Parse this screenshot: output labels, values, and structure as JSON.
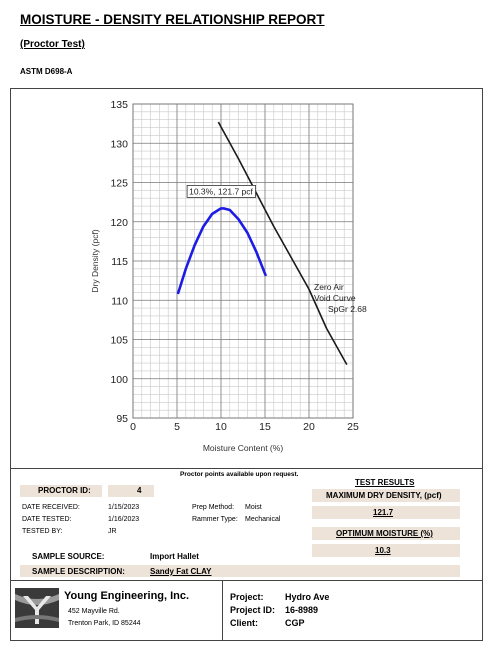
{
  "header": {
    "title": "MOISTURE - DENSITY RELATIONSHIP REPORT",
    "subtitle": "(Proctor Test)",
    "standard": "ASTM D698-A"
  },
  "chart_data": {
    "type": "line",
    "x_label": "Moisture Content (%)",
    "y_label": "Dry Density (pcf)",
    "xlim": [
      0,
      25
    ],
    "xticks": [
      0,
      5,
      10,
      15,
      20,
      25
    ],
    "ylim": [
      95,
      135
    ],
    "yticks": [
      95,
      100,
      105,
      110,
      115,
      120,
      125,
      130,
      135
    ],
    "grid": true,
    "series": [
      {
        "color": "#1c1ce6",
        "x": [
          5.1,
          6,
          7,
          8,
          9,
          10,
          10.3,
          11,
          12,
          13,
          14,
          15.1
        ],
        "values": [
          110.8,
          114.0,
          117.0,
          119.4,
          121.0,
          121.7,
          121.7,
          121.5,
          120.3,
          118.6,
          116.2,
          113.1
        ]
      },
      {
        "color": "#1a1a1a",
        "x": [
          9.7,
          12,
          14,
          16,
          18,
          20,
          22,
          24.3
        ],
        "values": [
          132.7,
          128.0,
          123.7,
          119.4,
          115.4,
          111.4,
          106.4,
          101.8
        ]
      }
    ],
    "annotations": [
      "10.3%, 121.7 pcf",
      "Zero Air",
      "Void Curve",
      "SpGr 2.68"
    ]
  },
  "note": "Proctor points available upon request.",
  "details": {
    "proctor_id_label": "PROCTOR ID:",
    "proctor_id": 4,
    "date_received_label": "DATE RECEIVED:",
    "date_received": "1/15/2023",
    "date_tested_label": "DATE TESTED:",
    "date_tested": "1/16/2023",
    "tested_by_label": "TESTED BY:",
    "tested_by": "JR",
    "prep_method_label": "Prep Method:",
    "prep_method": "Moist",
    "rammer_type_label": "Rammer Type:",
    "rammer_type": "Mechanical",
    "sample_source_label": "SAMPLE SOURCE:",
    "sample_source": "Import Hallet",
    "sample_description_label": "SAMPLE DESCRIPTION:",
    "sample_description": "Sandy Fat CLAY"
  },
  "results": {
    "title": "TEST RESULTS",
    "max_dry_density_label": "MAXIMUM DRY DENSITY, (pcf)",
    "max_dry_density": 121.7,
    "optimum_moisture_label": "OPTIMUM MOISTURE (%)",
    "optimum_moisture": 10.3
  },
  "footer": {
    "company": "Young Engineering, Inc.",
    "address_line1": "452 Mayville Rd.",
    "address_line2": "Trenton Park, ID 85244",
    "project_label": "Project:",
    "project": "Hydro Ave",
    "project_id_label": "Project ID:",
    "project_id": "16-8989",
    "client_label": "Client:",
    "client": "CGP"
  }
}
